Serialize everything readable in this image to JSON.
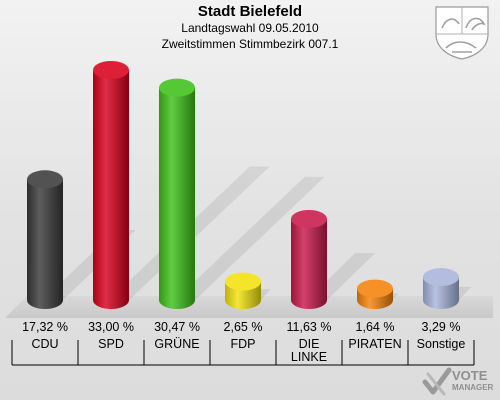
{
  "header": {
    "title": "Stadt Bielefeld",
    "subtitle_1": "Landtagswahl 09.05.2010",
    "subtitle_2": "Zweitstimmen Stimmbezirk 007.1"
  },
  "chart_data": {
    "type": "bar",
    "title": "Stadt Bielefeld",
    "subtitle": "Landtagswahl 09.05.2010 / Zweitstimmen Stimmbezirk 007.1",
    "xlabel": "",
    "ylabel": "",
    "ylim": [
      0,
      33.0
    ],
    "grid": false,
    "legend": "none",
    "categories": [
      "CDU",
      "SPD",
      "GRÜNE",
      "FDP",
      "DIE LINKE",
      "PIRATEN",
      "Sonstige"
    ],
    "values": [
      17.32,
      33.0,
      30.47,
      2.65,
      11.63,
      1.64,
      3.29
    ],
    "value_labels": [
      "17,32 %",
      "33,00 %",
      "30,47 %",
      "2,65 %",
      "11,63 %",
      "1,64 %",
      "3,29 %"
    ],
    "category_labels": [
      [
        "CDU"
      ],
      [
        "SPD"
      ],
      [
        "GRÜNE"
      ],
      [
        "FDP"
      ],
      [
        "DIE",
        "LINKE"
      ],
      [
        "PIRATEN"
      ],
      [
        "Sonstige"
      ]
    ],
    "colors": [
      "#3a3a3a",
      "#d8001c",
      "#3ec21a",
      "#f2e20e",
      "#c8194a",
      "#f5820a",
      "#a8b4dc"
    ]
  },
  "watermark": {
    "word_1": "VOTE",
    "word_2": "MANAGER",
    "color": "#8f8f8f"
  },
  "crest": {
    "icon": "nrw-coat-of-arms-icon"
  }
}
